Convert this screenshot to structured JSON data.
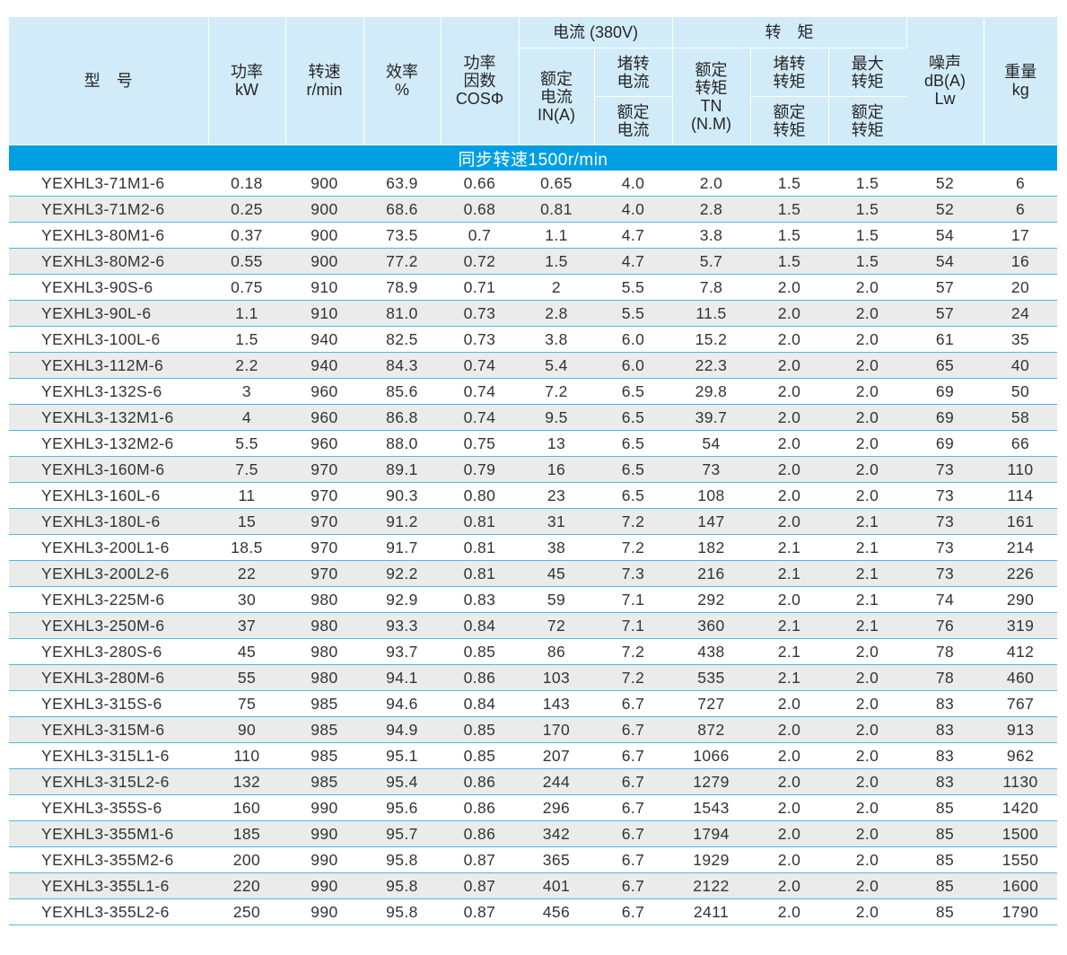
{
  "headers": {
    "model": "型　号",
    "power": [
      "功率",
      "kW"
    ],
    "speed": [
      "转速",
      "r/min"
    ],
    "efficiency": [
      "效率",
      "%"
    ],
    "power_factor": [
      "功率",
      "因数",
      "COSΦ"
    ],
    "current_group": "电流 (380V)",
    "rated_current": [
      "额定",
      "电流",
      "IN(A)"
    ],
    "locked_current_top": [
      "堵转",
      "电流"
    ],
    "locked_current_bottom": [
      "额定",
      "电流"
    ],
    "torque_group": "转　矩",
    "rated_torque": [
      "额定",
      "转矩",
      "TN",
      "(N.M)"
    ],
    "locked_torque_top": [
      "堵转",
      "转矩"
    ],
    "locked_torque_bottom": [
      "额定",
      "转矩"
    ],
    "max_torque_top": [
      "最大",
      "转矩"
    ],
    "max_torque_bottom": [
      "额定",
      "转矩"
    ],
    "noise": [
      "噪声",
      "dB(A)",
      "Lw"
    ],
    "weight": [
      "重量",
      "kg"
    ]
  },
  "section_title": "同步转速1500r/min",
  "colors": {
    "header_bg": "#d2ebf8",
    "section_bg": "#009fe3",
    "row_alt_bg": "#ebebeb",
    "row_divider": "#4fb6e6"
  },
  "rows": [
    [
      "YEXHL3-71M1-6",
      "0.18",
      "900",
      "63.9",
      "0.66",
      "0.65",
      "4.0",
      "2.0",
      "1.5",
      "1.5",
      "52",
      "6"
    ],
    [
      "YEXHL3-71M2-6",
      "0.25",
      "900",
      "68.6",
      "0.68",
      "0.81",
      "4.0",
      "2.8",
      "1.5",
      "1.5",
      "52",
      "6"
    ],
    [
      "YEXHL3-80M1-6",
      "0.37",
      "900",
      "73.5",
      "0.7",
      "1.1",
      "4.7",
      "3.8",
      "1.5",
      "1.5",
      "54",
      "17"
    ],
    [
      "YEXHL3-80M2-6",
      "0.55",
      "900",
      "77.2",
      "0.72",
      "1.5",
      "4.7",
      "5.7",
      "1.5",
      "1.5",
      "54",
      "16"
    ],
    [
      "YEXHL3-90S-6",
      "0.75",
      "910",
      "78.9",
      "0.71",
      "2",
      "5.5",
      "7.8",
      "2.0",
      "2.0",
      "57",
      "20"
    ],
    [
      "YEXHL3-90L-6",
      "1.1",
      "910",
      "81.0",
      "0.73",
      "2.8",
      "5.5",
      "11.5",
      "2.0",
      "2.0",
      "57",
      "24"
    ],
    [
      "YEXHL3-100L-6",
      "1.5",
      "940",
      "82.5",
      "0.73",
      "3.8",
      "6.0",
      "15.2",
      "2.0",
      "2.0",
      "61",
      "35"
    ],
    [
      "YEXHL3-112M-6",
      "2.2",
      "940",
      "84.3",
      "0.74",
      "5.4",
      "6.0",
      "22.3",
      "2.0",
      "2.0",
      "65",
      "40"
    ],
    [
      "YEXHL3-132S-6",
      "3",
      "960",
      "85.6",
      "0.74",
      "7.2",
      "6.5",
      "29.8",
      "2.0",
      "2.0",
      "69",
      "50"
    ],
    [
      "YEXHL3-132M1-6",
      "4",
      "960",
      "86.8",
      "0.74",
      "9.5",
      "6.5",
      "39.7",
      "2.0",
      "2.0",
      "69",
      "58"
    ],
    [
      "YEXHL3-132M2-6",
      "5.5",
      "960",
      "88.0",
      "0.75",
      "13",
      "6.5",
      "54",
      "2.0",
      "2.0",
      "69",
      "66"
    ],
    [
      "YEXHL3-160M-6",
      "7.5",
      "970",
      "89.1",
      "0.79",
      "16",
      "6.5",
      "73",
      "2.0",
      "2.0",
      "73",
      "110"
    ],
    [
      "YEXHL3-160L-6",
      "11",
      "970",
      "90.3",
      "0.80",
      "23",
      "6.5",
      "108",
      "2.0",
      "2.0",
      "73",
      "114"
    ],
    [
      "YEXHL3-180L-6",
      "15",
      "970",
      "91.2",
      "0.81",
      "31",
      "7.2",
      "147",
      "2.0",
      "2.1",
      "73",
      "161"
    ],
    [
      "YEXHL3-200L1-6",
      "18.5",
      "970",
      "91.7",
      "0.81",
      "38",
      "7.2",
      "182",
      "2.1",
      "2.1",
      "73",
      "214"
    ],
    [
      "YEXHL3-200L2-6",
      "22",
      "970",
      "92.2",
      "0.81",
      "45",
      "7.3",
      "216",
      "2.1",
      "2.1",
      "73",
      "226"
    ],
    [
      "YEXHL3-225M-6",
      "30",
      "980",
      "92.9",
      "0.83",
      "59",
      "7.1",
      "292",
      "2.0",
      "2.1",
      "74",
      "290"
    ],
    [
      "YEXHL3-250M-6",
      "37",
      "980",
      "93.3",
      "0.84",
      "72",
      "7.1",
      "360",
      "2.1",
      "2.1",
      "76",
      "319"
    ],
    [
      "YEXHL3-280S-6",
      "45",
      "980",
      "93.7",
      "0.85",
      "86",
      "7.2",
      "438",
      "2.1",
      "2.0",
      "78",
      "412"
    ],
    [
      "YEXHL3-280M-6",
      "55",
      "980",
      "94.1",
      "0.86",
      "103",
      "7.2",
      "535",
      "2.1",
      "2.0",
      "78",
      "460"
    ],
    [
      "YEXHL3-315S-6",
      "75",
      "985",
      "94.6",
      "0.84",
      "143",
      "6.7",
      "727",
      "2.0",
      "2.0",
      "83",
      "767"
    ],
    [
      "YEXHL3-315M-6",
      "90",
      "985",
      "94.9",
      "0.85",
      "170",
      "6.7",
      "872",
      "2.0",
      "2.0",
      "83",
      "913"
    ],
    [
      "YEXHL3-315L1-6",
      "110",
      "985",
      "95.1",
      "0.85",
      "207",
      "6.7",
      "1066",
      "2.0",
      "2.0",
      "83",
      "962"
    ],
    [
      "YEXHL3-315L2-6",
      "132",
      "985",
      "95.4",
      "0.86",
      "244",
      "6.7",
      "1279",
      "2.0",
      "2.0",
      "83",
      "1130"
    ],
    [
      "YEXHL3-355S-6",
      "160",
      "990",
      "95.6",
      "0.86",
      "296",
      "6.7",
      "1543",
      "2.0",
      "2.0",
      "85",
      "1420"
    ],
    [
      "YEXHL3-355M1-6",
      "185",
      "990",
      "95.7",
      "0.86",
      "342",
      "6.7",
      "1794",
      "2.0",
      "2.0",
      "85",
      "1500"
    ],
    [
      "YEXHL3-355M2-6",
      "200",
      "990",
      "95.8",
      "0.87",
      "365",
      "6.7",
      "1929",
      "2.0",
      "2.0",
      "85",
      "1550"
    ],
    [
      "YEXHL3-355L1-6",
      "220",
      "990",
      "95.8",
      "0.87",
      "401",
      "6.7",
      "2122",
      "2.0",
      "2.0",
      "85",
      "1600"
    ],
    [
      "YEXHL3-355L2-6",
      "250",
      "990",
      "95.8",
      "0.87",
      "456",
      "6.7",
      "2411",
      "2.0",
      "2.0",
      "85",
      "1790"
    ]
  ]
}
